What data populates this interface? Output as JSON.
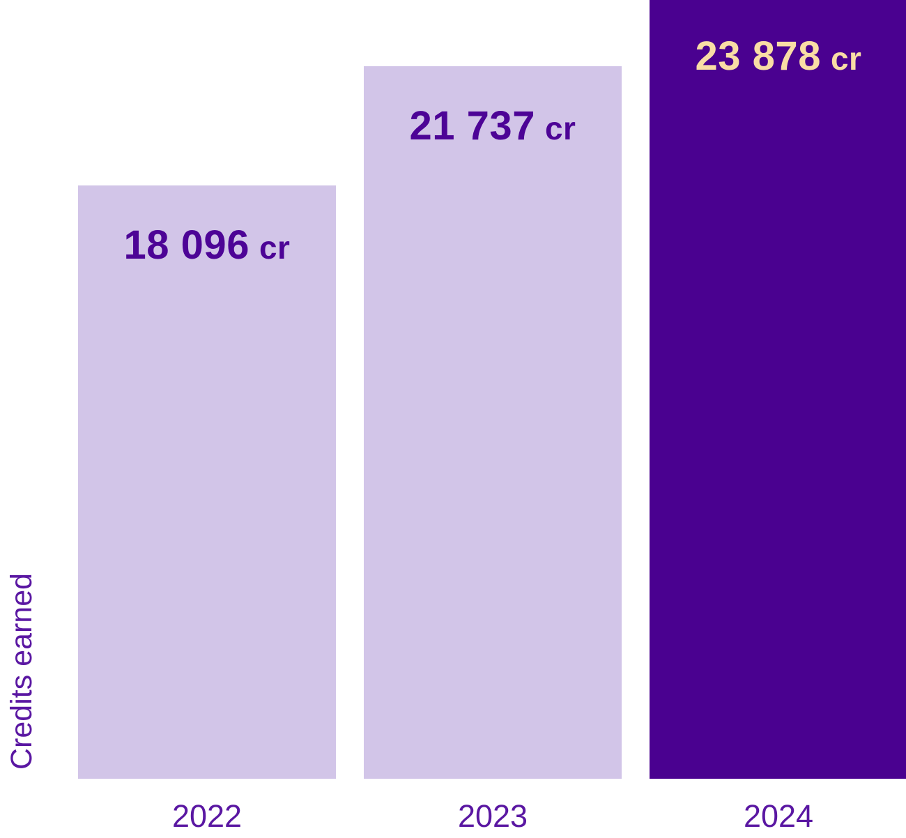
{
  "chart_data": {
    "type": "bar",
    "title": "",
    "xlabel": "",
    "ylabel": "Credits earned",
    "unit": "cr",
    "grid": false,
    "legend": false,
    "background": "#FFFFFF",
    "axis_label_color": "#5A17A2",
    "categories": [
      "2022",
      "2023",
      "2024"
    ],
    "values": [
      18096,
      21737,
      23878
    ],
    "highlight_category": "2024",
    "ylim": [
      0,
      23878
    ],
    "bars": [
      {
        "year": "2022",
        "value": 18096,
        "value_label": "18 096",
        "unit": "cr",
        "fill": "#D2C5E8",
        "label_color": "#4D0496"
      },
      {
        "year": "2023",
        "value": 21737,
        "value_label": "21 737",
        "unit": "cr",
        "fill": "#D2C5E8",
        "label_color": "#4D0496"
      },
      {
        "year": "2024",
        "value": 23878,
        "value_label": "23 878",
        "unit": "cr",
        "fill": "#4A0190",
        "label_color": "#F9DDA5"
      }
    ]
  }
}
